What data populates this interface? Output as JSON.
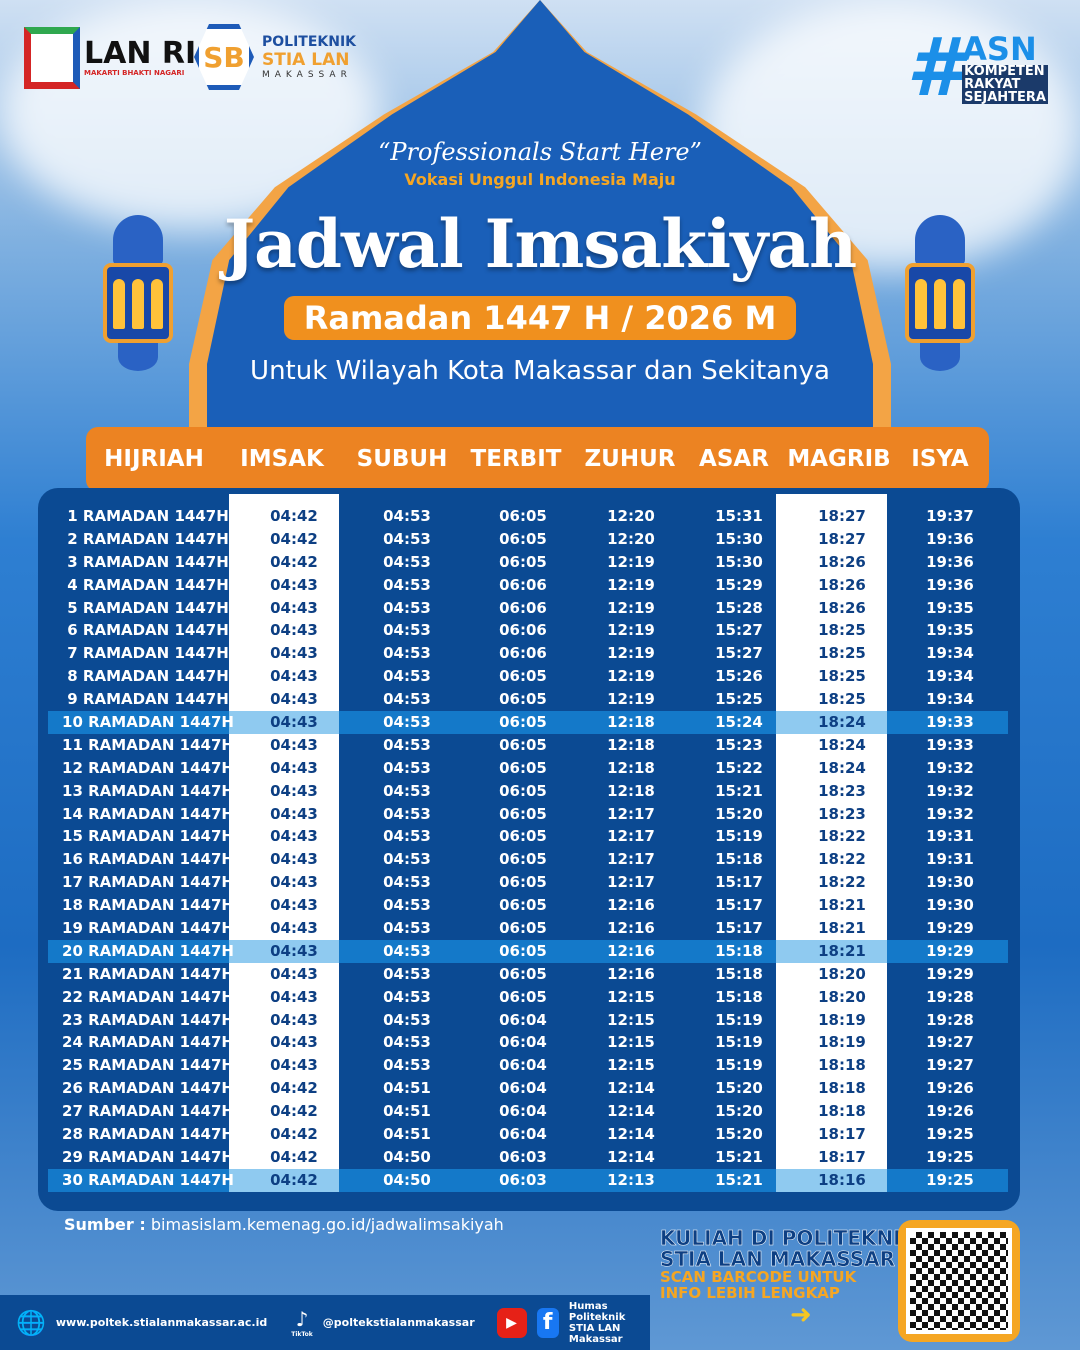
{
  "header": {
    "lan_logo": {
      "name": "LAN RI",
      "motto": "MAKARTI BHAKTI NAGARI"
    },
    "stia_logo": {
      "line1": "POLITEKNIK",
      "line2": "STIA LAN",
      "line3": "MAKASSAR"
    },
    "asn_logo": {
      "hash": "#",
      "word": "ASN",
      "line1": "KOMPETEN",
      "line2": "RAKYAT",
      "line3": "SEJAHTERA"
    },
    "tagline": "“Professionals Start Here”",
    "subtagline": "Vokasi Unggul Indonesia Maju",
    "title": "Jadwal Imsakiyah",
    "period": "Ramadan 1447 H / 2026 M",
    "region": "Untuk Wilayah Kota Makassar dan Sekitanya"
  },
  "table": {
    "columns": [
      "HIJRIAH",
      "IMSAK",
      "SUBUH",
      "TERBIT",
      "ZUHUR",
      "ASAR",
      "MAGRIB",
      "ISYA"
    ],
    "highlight_color": "#8fcaf0",
    "header_color": "#ec8322",
    "rows": [
      [
        "1 RAMADAN 1447H",
        "04:42",
        "04:53",
        "06:05",
        "12:20",
        "15:31",
        "18:27",
        "19:37"
      ],
      [
        "2 RAMADAN 1447H",
        "04:42",
        "04:53",
        "06:05",
        "12:20",
        "15:30",
        "18:27",
        "19:36"
      ],
      [
        "3 RAMADAN 1447H",
        "04:42",
        "04:53",
        "06:05",
        "12:19",
        "15:30",
        "18:26",
        "19:36"
      ],
      [
        "4 RAMADAN 1447H",
        "04:43",
        "04:53",
        "06:06",
        "12:19",
        "15:29",
        "18:26",
        "19:36"
      ],
      [
        "5 RAMADAN 1447H",
        "04:43",
        "04:53",
        "06:06",
        "12:19",
        "15:28",
        "18:26",
        "19:35"
      ],
      [
        "6 RAMADAN 1447H",
        "04:43",
        "04:53",
        "06:06",
        "12:19",
        "15:27",
        "18:25",
        "19:35"
      ],
      [
        "7 RAMADAN 1447H",
        "04:43",
        "04:53",
        "06:06",
        "12:19",
        "15:27",
        "18:25",
        "19:34"
      ],
      [
        "8 RAMADAN 1447H",
        "04:43",
        "04:53",
        "06:05",
        "12:19",
        "15:26",
        "18:25",
        "19:34"
      ],
      [
        "9 RAMADAN 1447H",
        "04:43",
        "04:53",
        "06:05",
        "12:19",
        "15:25",
        "18:25",
        "19:34"
      ],
      [
        "10 RAMADAN 1447H",
        "04:43",
        "04:53",
        "06:05",
        "12:18",
        "15:24",
        "18:24",
        "19:33"
      ],
      [
        "11 RAMADAN 1447H",
        "04:43",
        "04:53",
        "06:05",
        "12:18",
        "15:23",
        "18:24",
        "19:33"
      ],
      [
        "12 RAMADAN 1447H",
        "04:43",
        "04:53",
        "06:05",
        "12:18",
        "15:22",
        "18:24",
        "19:32"
      ],
      [
        "13 RAMADAN 1447H",
        "04:43",
        "04:53",
        "06:05",
        "12:18",
        "15:21",
        "18:23",
        "19:32"
      ],
      [
        "14 RAMADAN 1447H",
        "04:43",
        "04:53",
        "06:05",
        "12:17",
        "15:20",
        "18:23",
        "19:32"
      ],
      [
        "15 RAMADAN 1447H",
        "04:43",
        "04:53",
        "06:05",
        "12:17",
        "15:19",
        "18:22",
        "19:31"
      ],
      [
        "16 RAMADAN 1447H",
        "04:43",
        "04:53",
        "06:05",
        "12:17",
        "15:18",
        "18:22",
        "19:31"
      ],
      [
        "17 RAMADAN 1447H",
        "04:43",
        "04:53",
        "06:05",
        "12:17",
        "15:17",
        "18:22",
        "19:30"
      ],
      [
        "18 RAMADAN 1447H",
        "04:43",
        "04:53",
        "06:05",
        "12:16",
        "15:17",
        "18:21",
        "19:30"
      ],
      [
        "19 RAMADAN 1447H",
        "04:43",
        "04:53",
        "06:05",
        "12:16",
        "15:17",
        "18:21",
        "19:29"
      ],
      [
        "20 RAMADAN 1447H",
        "04:43",
        "04:53",
        "06:05",
        "12:16",
        "15:18",
        "18:21",
        "19:29"
      ],
      [
        "21 RAMADAN 1447H",
        "04:43",
        "04:53",
        "06:05",
        "12:16",
        "15:18",
        "18:20",
        "19:29"
      ],
      [
        "22 RAMADAN 1447H",
        "04:43",
        "04:53",
        "06:05",
        "12:15",
        "15:18",
        "18:20",
        "19:28"
      ],
      [
        "23 RAMADAN 1447H",
        "04:43",
        "04:53",
        "06:04",
        "12:15",
        "15:19",
        "18:19",
        "19:28"
      ],
      [
        "24 RAMADAN 1447H",
        "04:43",
        "04:53",
        "06:04",
        "12:15",
        "15:19",
        "18:19",
        "19:27"
      ],
      [
        "25 RAMADAN 1447H",
        "04:43",
        "04:53",
        "06:04",
        "12:15",
        "15:19",
        "18:18",
        "19:27"
      ],
      [
        "26 RAMADAN 1447H",
        "04:42",
        "04:51",
        "06:04",
        "12:14",
        "15:20",
        "18:18",
        "19:26"
      ],
      [
        "27 RAMADAN 1447H",
        "04:42",
        "04:51",
        "06:04",
        "12:14",
        "15:20",
        "18:18",
        "19:26"
      ],
      [
        "28 RAMADAN 1447H",
        "04:42",
        "04:51",
        "06:04",
        "12:14",
        "15:20",
        "18:17",
        "19:25"
      ],
      [
        "29 RAMADAN 1447H",
        "04:42",
        "04:50",
        "06:03",
        "12:14",
        "15:21",
        "18:17",
        "19:25"
      ],
      [
        "30 RAMADAN 1447H",
        "04:42",
        "04:50",
        "06:03",
        "12:13",
        "15:21",
        "18:16",
        "19:25"
      ]
    ],
    "highlighted_rows": [
      10,
      20,
      30
    ]
  },
  "source": {
    "label": "Sumber :",
    "url": "bimasislam.kemenag.go.id/jadwalimsakiyah"
  },
  "footer": {
    "website": "www.poltek.stialanmakassar.ac.id",
    "tiktok_label": "TikTok",
    "handle": "@poltekstialanmakassar",
    "humas1": "Humas Politeknik",
    "humas2": "STIA LAN Makassar"
  },
  "cta": {
    "line1": "KULIAH DI POLITEKNIK",
    "line2": "STIA LAN MAKASSAR",
    "line3": "SCAN BARCODE UNTUK",
    "line4": "INFO LEBIH LENGKAP"
  }
}
